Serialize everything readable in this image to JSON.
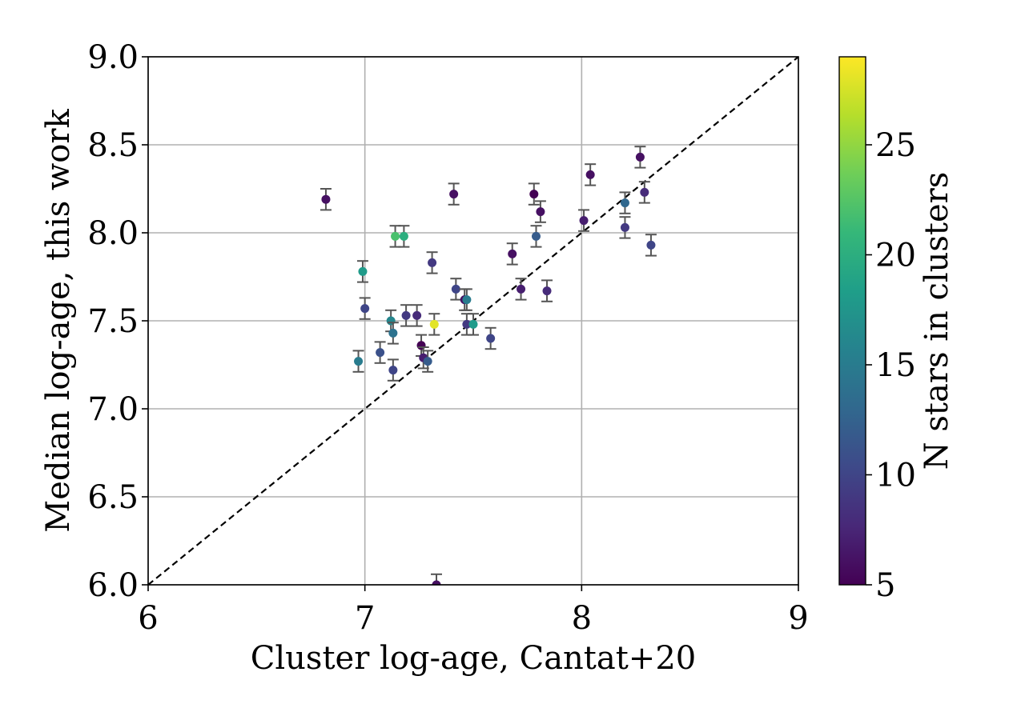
{
  "chart_data": {
    "type": "scatter",
    "xlabel": "Cluster log-age, Cantat+20",
    "ylabel": "Median log-age, this work",
    "xlim": [
      6,
      9
    ],
    "ylim": [
      6,
      9
    ],
    "x_ticks": [
      "6",
      "7",
      "8",
      "9"
    ],
    "y_ticks": [
      "6.0",
      "6.5",
      "7.0",
      "7.5",
      "8.0",
      "8.5",
      "9.0"
    ],
    "grid": true,
    "reference_line": {
      "style": "dashed",
      "color": "#000000",
      "from": [
        6,
        6
      ],
      "to": [
        9,
        9
      ]
    },
    "colorbar": {
      "label": "N stars in clusters",
      "colormap": "viridis",
      "range": [
        5,
        29
      ],
      "ticks": [
        "5",
        "10",
        "15",
        "20",
        "25"
      ],
      "tick_values": [
        5,
        10,
        15,
        20,
        25
      ],
      "colors": [
        "#440154",
        "#482878",
        "#3e4989",
        "#31688e",
        "#26828e",
        "#1f9e89",
        "#35b779",
        "#6ece58",
        "#b5de2b",
        "#fde725"
      ]
    },
    "errorbar_color": "#555555",
    "points": [
      {
        "x": 6.82,
        "y": 8.19,
        "yerr": 0.06,
        "n": 6
      },
      {
        "x": 6.97,
        "y": 7.27,
        "yerr": 0.06,
        "n": 15
      },
      {
        "x": 6.99,
        "y": 7.78,
        "yerr": 0.06,
        "n": 18
      },
      {
        "x": 7.0,
        "y": 7.57,
        "yerr": 0.06,
        "n": 10
      },
      {
        "x": 7.07,
        "y": 7.32,
        "yerr": 0.06,
        "n": 11
      },
      {
        "x": 7.12,
        "y": 7.5,
        "yerr": 0.06,
        "n": 16
      },
      {
        "x": 7.13,
        "y": 7.43,
        "yerr": 0.06,
        "n": 14
      },
      {
        "x": 7.13,
        "y": 7.22,
        "yerr": 0.06,
        "n": 10
      },
      {
        "x": 7.14,
        "y": 7.98,
        "yerr": 0.06,
        "n": 22
      },
      {
        "x": 7.18,
        "y": 7.98,
        "yerr": 0.06,
        "n": 20
      },
      {
        "x": 7.19,
        "y": 7.53,
        "yerr": 0.06,
        "n": 9
      },
      {
        "x": 7.24,
        "y": 7.53,
        "yerr": 0.06,
        "n": 8
      },
      {
        "x": 7.26,
        "y": 7.36,
        "yerr": 0.06,
        "n": 5
      },
      {
        "x": 7.27,
        "y": 7.29,
        "yerr": 0.06,
        "n": 7
      },
      {
        "x": 7.29,
        "y": 7.27,
        "yerr": 0.06,
        "n": 12
      },
      {
        "x": 7.31,
        "y": 7.83,
        "yerr": 0.06,
        "n": 9
      },
      {
        "x": 7.32,
        "y": 7.48,
        "yerr": 0.06,
        "n": 28
      },
      {
        "x": 7.33,
        "y": 6.0,
        "yerr": 0.06,
        "n": 6
      },
      {
        "x": 7.41,
        "y": 8.22,
        "yerr": 0.06,
        "n": 6
      },
      {
        "x": 7.42,
        "y": 7.68,
        "yerr": 0.06,
        "n": 10
      },
      {
        "x": 7.46,
        "y": 7.62,
        "yerr": 0.06,
        "n": 6
      },
      {
        "x": 7.47,
        "y": 7.62,
        "yerr": 0.06,
        "n": 15
      },
      {
        "x": 7.47,
        "y": 7.48,
        "yerr": 0.06,
        "n": 9
      },
      {
        "x": 7.5,
        "y": 7.48,
        "yerr": 0.06,
        "n": 18
      },
      {
        "x": 7.58,
        "y": 7.4,
        "yerr": 0.06,
        "n": 10
      },
      {
        "x": 7.68,
        "y": 7.88,
        "yerr": 0.06,
        "n": 6
      },
      {
        "x": 7.72,
        "y": 7.68,
        "yerr": 0.06,
        "n": 7
      },
      {
        "x": 7.78,
        "y": 8.22,
        "yerr": 0.06,
        "n": 5
      },
      {
        "x": 7.79,
        "y": 7.98,
        "yerr": 0.06,
        "n": 12
      },
      {
        "x": 7.81,
        "y": 8.12,
        "yerr": 0.06,
        "n": 6
      },
      {
        "x": 7.84,
        "y": 7.67,
        "yerr": 0.06,
        "n": 8
      },
      {
        "x": 8.01,
        "y": 8.07,
        "yerr": 0.06,
        "n": 7
      },
      {
        "x": 8.04,
        "y": 8.33,
        "yerr": 0.06,
        "n": 6
      },
      {
        "x": 8.2,
        "y": 8.03,
        "yerr": 0.06,
        "n": 9
      },
      {
        "x": 8.2,
        "y": 8.17,
        "yerr": 0.06,
        "n": 13
      },
      {
        "x": 8.27,
        "y": 8.43,
        "yerr": 0.06,
        "n": 6
      },
      {
        "x": 8.29,
        "y": 8.23,
        "yerr": 0.06,
        "n": 8
      },
      {
        "x": 8.32,
        "y": 7.93,
        "yerr": 0.06,
        "n": 10
      }
    ]
  }
}
